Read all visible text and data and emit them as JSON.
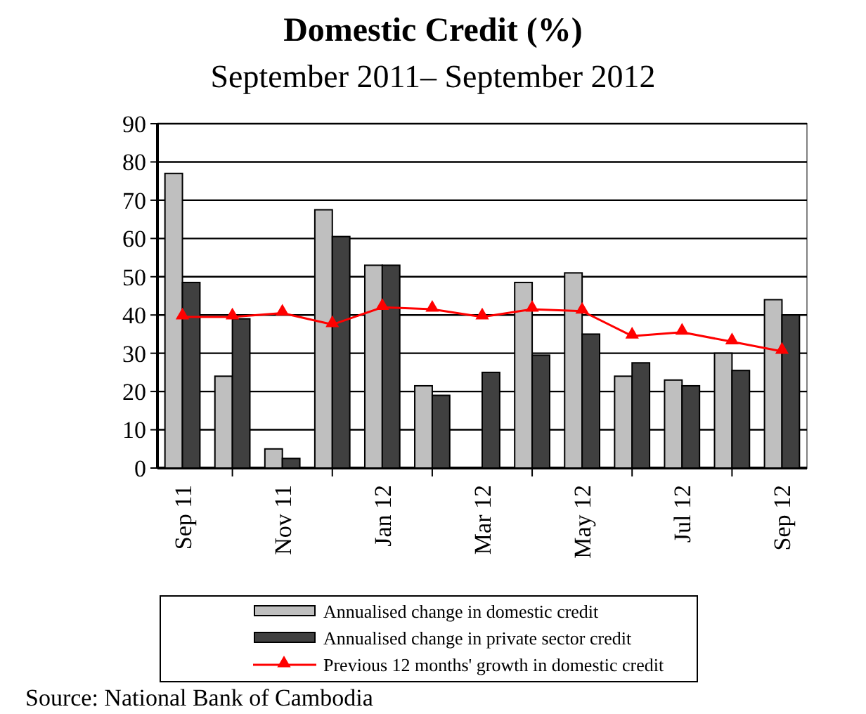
{
  "chart_data": {
    "type": "bar",
    "title": "Domestic Credit (%)",
    "subtitle": "September 2011– September 2012",
    "categories": [
      "Sep 11",
      null,
      "Nov 11",
      null,
      "Jan 12",
      null,
      "Mar 12",
      null,
      "May 12",
      null,
      "Jul 12",
      null,
      "Sep 12"
    ],
    "series": [
      {
        "name": "Annualised change in domestic  credit",
        "color": "#bfbfbf",
        "values": [
          77,
          24,
          5,
          67.5,
          53,
          21.5,
          null,
          48.5,
          51,
          24,
          23,
          30,
          44
        ]
      },
      {
        "name": "Annualised change in private sector credit",
        "color": "#404040",
        "values": [
          48.5,
          39,
          2.5,
          60.5,
          53,
          19,
          25,
          29.5,
          35,
          27.5,
          21.5,
          25.5,
          40
        ]
      },
      {
        "name": "Previous 12 months'  growth  in domestic  credit",
        "type": "line",
        "color": "#ff0000",
        "marker": "triangle",
        "values": [
          39.5,
          39.5,
          40.5,
          37.5,
          42,
          41.5,
          39.5,
          41.5,
          41,
          34.5,
          35.5,
          33,
          30.5
        ]
      }
    ],
    "ylim": [
      0,
      90
    ],
    "yticks": [
      0,
      10,
      20,
      30,
      40,
      50,
      60,
      70,
      80,
      90
    ],
    "grid": "y",
    "legend": "bottom",
    "annotations": [
      "Source: National Bank of Cambodia"
    ]
  }
}
